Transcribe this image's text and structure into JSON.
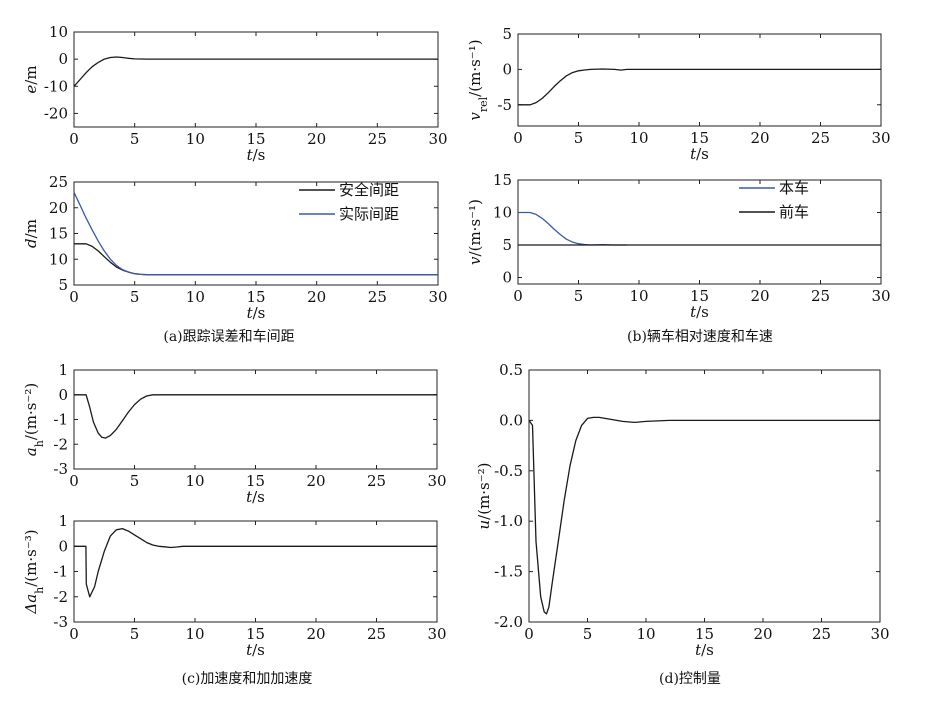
{
  "colors": {
    "black": "#1a1a1a",
    "blue": "#3a5aa8"
  },
  "captions": [
    "(a)跟踪误差和车间距",
    "(b)辆车相对速度和车速",
    "(c)加速度和加加速度",
    "(d)控制量"
  ],
  "chart_data": [
    {
      "type": "line",
      "title": "",
      "xlabel": "t/s",
      "ylabel": "e/m",
      "xlim": [
        0,
        30
      ],
      "ylim": [
        -25,
        10
      ],
      "xticks": [
        0,
        5,
        10,
        15,
        20,
        25,
        30
      ],
      "yticks": [
        -20,
        -10,
        0,
        10
      ],
      "series": [
        {
          "name": "",
          "color": "black",
          "x": [
            0,
            0.5,
            1,
            1.5,
            2,
            2.5,
            3,
            3.5,
            4,
            4.5,
            5,
            6,
            8,
            10,
            15,
            20,
            25,
            30
          ],
          "y": [
            -10,
            -7.5,
            -5,
            -2.8,
            -1.2,
            0,
            0.6,
            0.8,
            0.6,
            0.3,
            0.1,
            0,
            0,
            0,
            0,
            0,
            0,
            0
          ]
        }
      ]
    },
    {
      "type": "line",
      "title": "",
      "xlabel": "t/s",
      "ylabel": "d/m",
      "xlim": [
        0,
        30
      ],
      "ylim": [
        5,
        25
      ],
      "xticks": [
        0,
        5,
        10,
        15,
        20,
        25,
        30
      ],
      "yticks": [
        5,
        10,
        15,
        20,
        25
      ],
      "legend": "top-right",
      "series": [
        {
          "name": "安全间距",
          "color": "black",
          "x": [
            0,
            1,
            1.5,
            2,
            2.5,
            3,
            3.5,
            4,
            4.5,
            5,
            5.5,
            6,
            8,
            10,
            15,
            20,
            25,
            30
          ],
          "y": [
            13,
            13,
            12.5,
            11.6,
            10.5,
            9.4,
            8.5,
            7.9,
            7.5,
            7.2,
            7.05,
            7,
            7,
            7,
            7,
            7,
            7,
            7
          ]
        },
        {
          "name": "实际间距",
          "color": "blue",
          "x": [
            0,
            0.5,
            1,
            1.5,
            2,
            2.5,
            3,
            3.5,
            4,
            4.5,
            5,
            5.5,
            6,
            8,
            10,
            15,
            20,
            25,
            30
          ],
          "y": [
            23,
            20.5,
            18,
            15.7,
            13.5,
            11.6,
            10,
            8.8,
            8,
            7.5,
            7.2,
            7.05,
            7,
            7,
            7,
            7,
            7,
            7,
            7
          ]
        }
      ]
    },
    {
      "type": "line",
      "title": "",
      "xlabel": "t/s",
      "ylabel": "v_rel/(m·s⁻¹)",
      "xlim": [
        0,
        30
      ],
      "ylim": [
        -8,
        5
      ],
      "xticks": [
        0,
        5,
        10,
        15,
        20,
        25,
        30
      ],
      "yticks": [
        -5,
        0,
        5
      ],
      "series": [
        {
          "name": "",
          "color": "black",
          "x": [
            0,
            1,
            1.5,
            2,
            2.5,
            3,
            3.5,
            4,
            4.5,
            5,
            5.5,
            6,
            7,
            8,
            8.5,
            9,
            10,
            15,
            20,
            25,
            30
          ],
          "y": [
            -5,
            -5,
            -4.7,
            -4.1,
            -3.3,
            -2.4,
            -1.6,
            -0.9,
            -0.45,
            -0.2,
            -0.08,
            0,
            0.05,
            0,
            -0.1,
            0,
            0,
            0,
            0,
            0,
            0
          ]
        }
      ]
    },
    {
      "type": "line",
      "title": "",
      "xlabel": "t/s",
      "ylabel": "v/(m·s⁻¹)",
      "xlim": [
        0,
        30
      ],
      "ylim": [
        -1,
        15
      ],
      "xticks": [
        0,
        5,
        10,
        15,
        20,
        25,
        30
      ],
      "yticks": [
        0,
        5,
        10,
        15
      ],
      "legend": "top-right",
      "series": [
        {
          "name": "本车",
          "color": "blue",
          "x": [
            0,
            1,
            1.5,
            2,
            2.5,
            3,
            3.5,
            4,
            4.5,
            5,
            5.5,
            6,
            7,
            8,
            9
          ],
          "y": [
            10,
            10,
            9.7,
            9.1,
            8.3,
            7.4,
            6.6,
            5.9,
            5.45,
            5.2,
            5.08,
            5,
            5.05,
            5,
            5
          ]
        },
        {
          "name": "前车",
          "color": "black",
          "x": [
            0,
            30
          ],
          "y": [
            5,
            5
          ]
        }
      ]
    },
    {
      "type": "line",
      "title": "",
      "xlabel": "t/s",
      "ylabel": "a_h/(m·s⁻²)",
      "xlim": [
        0,
        30
      ],
      "ylim": [
        -3,
        1
      ],
      "xticks": [
        0,
        5,
        10,
        15,
        20,
        25,
        30
      ],
      "yticks": [
        -3,
        -2,
        -1,
        0,
        1
      ],
      "series": [
        {
          "name": "",
          "color": "black",
          "x": [
            0,
            1,
            1.3,
            1.6,
            2,
            2.3,
            2.6,
            3,
            3.5,
            4,
            4.5,
            5,
            5.5,
            6,
            6.5,
            7,
            10,
            15,
            20,
            25,
            30
          ],
          "y": [
            0,
            0,
            -0.5,
            -1.1,
            -1.55,
            -1.72,
            -1.75,
            -1.65,
            -1.4,
            -1.05,
            -0.7,
            -0.4,
            -0.18,
            -0.05,
            0,
            0,
            0,
            0,
            0,
            0,
            0
          ]
        }
      ]
    },
    {
      "type": "line",
      "title": "",
      "xlabel": "t/s",
      "ylabel": "Δa_h/(m·s⁻³)",
      "xlim": [
        0,
        30
      ],
      "ylim": [
        -3,
        1
      ],
      "xticks": [
        0,
        5,
        10,
        15,
        20,
        25,
        30
      ],
      "yticks": [
        -3,
        -2,
        -1,
        0,
        1
      ],
      "series": [
        {
          "name": "",
          "color": "black",
          "x": [
            0,
            0.98,
            1.02,
            1.3,
            1.7,
            2,
            2.5,
            3,
            3.5,
            4,
            4.5,
            5,
            5.5,
            6,
            6.5,
            7,
            7.5,
            8,
            8.5,
            9,
            10,
            15,
            20,
            25,
            30
          ],
          "y": [
            0,
            0,
            -1.5,
            -2,
            -1.6,
            -1,
            -0.2,
            0.4,
            0.65,
            0.7,
            0.6,
            0.45,
            0.3,
            0.15,
            0.05,
            0,
            -0.02,
            -0.05,
            -0.03,
            0,
            0,
            0,
            0,
            0,
            0
          ]
        }
      ]
    },
    {
      "type": "line",
      "title": "",
      "xlabel": "t/s",
      "ylabel": "u/(m·s⁻²)",
      "xlim": [
        0,
        30
      ],
      "ylim": [
        -2.0,
        0.5
      ],
      "xticks": [
        0,
        5,
        10,
        15,
        20,
        25,
        30
      ],
      "yticks": [
        -2.0,
        -1.5,
        -1.0,
        -0.5,
        0.0,
        0.5
      ],
      "series": [
        {
          "name": "",
          "color": "black",
          "x": [
            0,
            0.3,
            0.6,
            1,
            1.3,
            1.5,
            1.7,
            2,
            2.5,
            3,
            3.5,
            4,
            4.5,
            5,
            5.5,
            6,
            6.5,
            7,
            8,
            9,
            10,
            12,
            15,
            20,
            25,
            30
          ],
          "y": [
            0,
            -0.05,
            -1.2,
            -1.75,
            -1.9,
            -1.92,
            -1.85,
            -1.6,
            -1.2,
            -0.8,
            -0.45,
            -0.2,
            -0.05,
            0.02,
            0.03,
            0.03,
            0.02,
            0.01,
            -0.01,
            -0.02,
            -0.01,
            0,
            0,
            0,
            0,
            0
          ]
        }
      ]
    }
  ]
}
